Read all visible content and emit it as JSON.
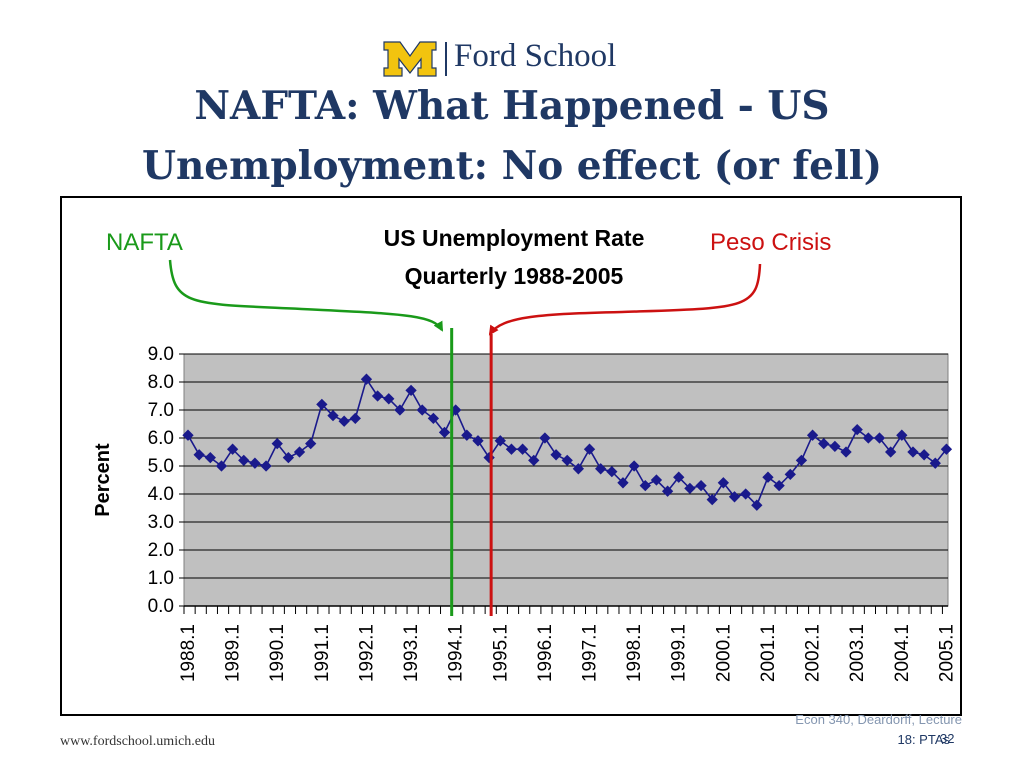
{
  "header": {
    "logo_text": "Ford School",
    "title_line1": "NAFTA: What Happened - US",
    "title_line2": "Unemployment:  No effect (or fell)"
  },
  "annotations": {
    "nafta_label": "NAFTA",
    "peso_label": "Peso Crisis",
    "nafta_color": "#1a9a1a",
    "peso_color": "#cc1111",
    "nafta_x": 1994.0,
    "peso_x": 1994.75
  },
  "footer": {
    "url": "www.fordschool.umich.edu",
    "course_line1": "Econ 340, Deardorff, Lecture",
    "course_line2": "18: PTAs",
    "page": "32"
  },
  "colors": {
    "title": "#1f3864",
    "series": "#1a1a8c",
    "plot_bg": "#c0c0c0"
  },
  "chart_data": {
    "type": "line",
    "title": "US Unemployment Rate",
    "subtitle": "Quarterly 1988-2005",
    "ylabel": "Percent",
    "xlabel": "",
    "ylim": [
      0,
      9
    ],
    "yticks": [
      "0.0",
      "1.0",
      "2.0",
      "3.0",
      "4.0",
      "5.0",
      "6.0",
      "7.0",
      "8.0",
      "9.0"
    ],
    "x_start": 1988.0,
    "x_step": 0.25,
    "xticks": [
      "1988.1",
      "1989.1",
      "1990.1",
      "1991.1",
      "1992.1",
      "1993.1",
      "1994.1",
      "1995.1",
      "1996.1",
      "1997.1",
      "1998.1",
      "1999.1",
      "2000.1",
      "2001.1",
      "2002.1",
      "2003.1",
      "2004.1",
      "2005.1"
    ],
    "grid": true,
    "legend": "none",
    "series": [
      {
        "name": "",
        "values": [
          6.1,
          5.4,
          5.3,
          5.0,
          5.6,
          5.2,
          5.1,
          5.0,
          5.8,
          5.3,
          5.5,
          5.8,
          7.2,
          6.8,
          6.6,
          6.7,
          8.1,
          7.5,
          7.4,
          7.0,
          7.7,
          7.0,
          6.7,
          6.2,
          7.0,
          6.1,
          5.9,
          5.3,
          5.9,
          5.6,
          5.6,
          5.2,
          6.0,
          5.4,
          5.2,
          4.9,
          5.6,
          4.9,
          4.8,
          4.4,
          5.0,
          4.3,
          4.5,
          4.1,
          4.6,
          4.2,
          4.3,
          3.8,
          4.4,
          3.9,
          4.0,
          3.6,
          4.6,
          4.3,
          4.7,
          5.2,
          6.1,
          5.8,
          5.7,
          5.5,
          6.3,
          6.0,
          6.0,
          5.5,
          6.1,
          5.5,
          5.4,
          5.1,
          5.6
        ]
      }
    ]
  }
}
